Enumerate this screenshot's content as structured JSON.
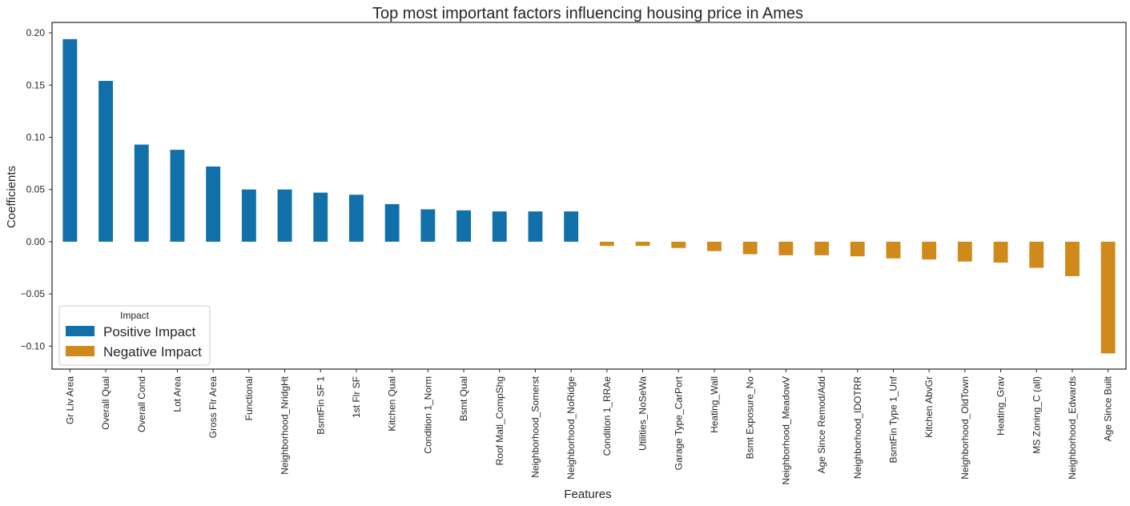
{
  "chart_data": {
    "type": "bar",
    "title": "Top most important factors influencing housing price in Ames",
    "xlabel": "Features",
    "ylabel": "Coefficients",
    "ylim": [
      -0.122,
      0.21
    ],
    "yticks": [
      0.2,
      0.15,
      0.1,
      0.05,
      0.0,
      -0.05,
      -0.1
    ],
    "ytick_labels": [
      "0.20",
      "0.15",
      "0.10",
      "0.05",
      "0.00",
      "−0.05",
      "−0.10"
    ],
    "grid": false,
    "legend": {
      "title": "Impact",
      "placement": "lower-left",
      "entries": [
        {
          "label": "Positive Impact",
          "color": "#1170aa"
        },
        {
          "label": "Negative Impact",
          "color": "#d08a1c"
        }
      ]
    },
    "categories": [
      "Gr Liv Area",
      "Overall Qual",
      "Overall Cond",
      "Lot Area",
      "Gross Flr Area",
      "Functional",
      "Neighborhood_NridgHt",
      "BsmtFin SF 1",
      "1st Flr SF",
      "Kitchen Qual",
      "Condition 1_Norm",
      "Bsmt Qual",
      "Roof Matl_CompShg",
      "Neighborhood_Somerst",
      "Neighborhood_NoRidge",
      "Condition 1_RRAe",
      "Utilities_NoSeWa",
      "Garage Type_CarPort",
      "Heating_Wall",
      "Bsmt Exposure_No",
      "Neighborhood_MeadowV",
      "Age Since Remod/Add",
      "Neighborhood_IDOTRR",
      "BsmtFin Type 1_Unf",
      "Kitchen AbvGr",
      "Neighborhood_OldTown",
      "Heating_Grav",
      "MS Zoning_C (all)",
      "Neighborhood_Edwards",
      "Age Since Built"
    ],
    "series": [
      {
        "name": "Positive Impact",
        "color": "#1170aa",
        "values": [
          0.194,
          0.154,
          0.093,
          0.088,
          0.072,
          0.05,
          0.05,
          0.047,
          0.045,
          0.036,
          0.031,
          0.03,
          0.029,
          0.029,
          0.029,
          null,
          null,
          null,
          null,
          null,
          null,
          null,
          null,
          null,
          null,
          null,
          null,
          null,
          null,
          null
        ]
      },
      {
        "name": "Negative Impact",
        "color": "#d08a1c",
        "values": [
          null,
          null,
          null,
          null,
          null,
          null,
          null,
          null,
          null,
          null,
          null,
          null,
          null,
          null,
          null,
          -0.004,
          -0.004,
          -0.006,
          -0.009,
          -0.012,
          -0.013,
          -0.013,
          -0.014,
          -0.016,
          -0.017,
          -0.019,
          -0.02,
          -0.025,
          -0.033,
          -0.107
        ]
      }
    ]
  }
}
